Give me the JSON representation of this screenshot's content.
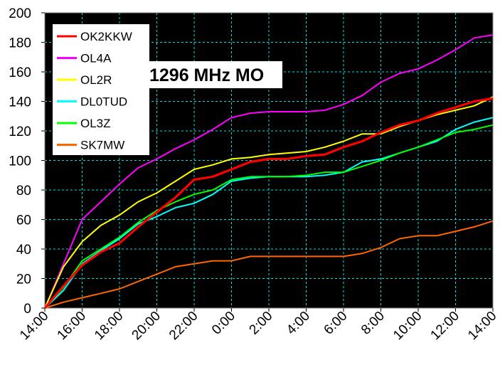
{
  "chart_data": {
    "type": "line",
    "title": "1296 MHz MO",
    "xlabel": "",
    "ylabel": "",
    "ylim": [
      0,
      200
    ],
    "yticks": [
      0,
      20,
      40,
      60,
      80,
      100,
      120,
      140,
      160,
      180,
      200
    ],
    "xticks": [
      "14:00",
      "16:00",
      "18:00",
      "20:00",
      "22:00",
      "0:00",
      "2:00",
      "4:00",
      "6:00",
      "8:00",
      "10:00",
      "12:00",
      "14:00"
    ],
    "x_hours": [
      0,
      1,
      2,
      3,
      4,
      5,
      6,
      7,
      8,
      9,
      10,
      11,
      12,
      13,
      14,
      15,
      16,
      17,
      18,
      19,
      20,
      21,
      22,
      23,
      24
    ],
    "grid": true,
    "legend_position": "top-left",
    "series": [
      {
        "name": "OK2KKW",
        "color": "#ff0000",
        "values": [
          0,
          15,
          29,
          38,
          44,
          55,
          65,
          75,
          87,
          89,
          94,
          99,
          101,
          101,
          103,
          104,
          109,
          113,
          119,
          124,
          127,
          132,
          136,
          140,
          142
        ]
      },
      {
        "name": "OL4A",
        "color": "#ff00ff",
        "values": [
          0,
          30,
          60,
          72,
          84,
          95,
          101,
          108,
          114,
          121,
          129,
          132,
          133,
          133,
          133,
          134,
          138,
          144,
          153,
          159,
          162,
          168,
          175,
          183,
          185
        ]
      },
      {
        "name": "OL2R",
        "color": "#ffff00",
        "values": [
          0,
          28,
          45,
          56,
          63,
          72,
          78,
          86,
          94,
          97,
          101,
          102,
          104,
          105,
          106,
          109,
          113,
          118,
          118,
          123,
          127,
          131,
          134,
          137,
          143
        ]
      },
      {
        "name": "DL0TUD",
        "color": "#00ffff",
        "values": [
          0,
          12,
          30,
          39,
          47,
          57,
          62,
          68,
          71,
          77,
          86,
          88,
          89,
          89,
          89,
          90,
          92,
          99,
          101,
          105,
          109,
          113,
          121,
          126,
          129
        ]
      },
      {
        "name": "OL3Z",
        "color": "#00ff00",
        "values": [
          0,
          14,
          32,
          40,
          48,
          58,
          66,
          72,
          77,
          80,
          87,
          89,
          89,
          89,
          90,
          92,
          92,
          96,
          100,
          105,
          109,
          114,
          119,
          121,
          124
        ]
      },
      {
        "name": "SK7MW",
        "color": "#ff6600",
        "values": [
          0,
          4,
          7,
          10,
          13,
          18,
          23,
          28,
          30,
          32,
          32,
          35,
          35,
          35,
          35,
          35,
          35,
          37,
          41,
          47,
          49,
          49,
          52,
          55,
          59
        ]
      }
    ]
  }
}
